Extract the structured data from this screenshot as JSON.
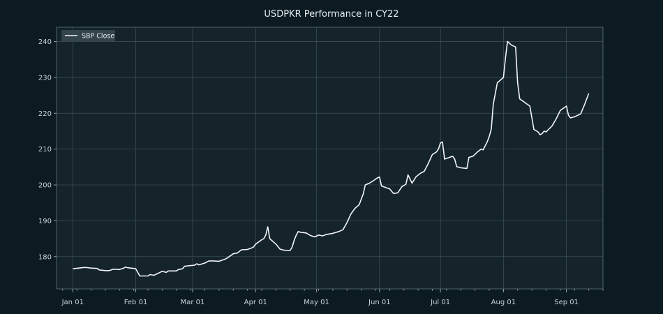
{
  "chart_data": {
    "type": "line",
    "title": "USDPKR Performance in CY22",
    "xlabel": "",
    "ylabel": "",
    "x_axis_type": "date",
    "xlim": [
      "2021-12-24",
      "2022-09-19"
    ],
    "ylim": [
      171,
      244
    ],
    "y_ticks": [
      180,
      190,
      200,
      210,
      220,
      230,
      240
    ],
    "x_ticks": [
      {
        "date": "2022-01-01",
        "label": "Jan 01"
      },
      {
        "date": "2022-02-01",
        "label": "Feb 01"
      },
      {
        "date": "2022-03-01",
        "label": "Mar 01"
      },
      {
        "date": "2022-04-01",
        "label": "Apr 01"
      },
      {
        "date": "2022-05-01",
        "label": "May 01"
      },
      {
        "date": "2022-06-01",
        "label": "Jun 01"
      },
      {
        "date": "2022-07-01",
        "label": "Jul 01"
      },
      {
        "date": "2022-08-01",
        "label": "Aug 01"
      },
      {
        "date": "2022-09-01",
        "label": "Sep 01"
      }
    ],
    "grid": true,
    "legend_position": "top-left",
    "series": [
      {
        "name": "SBP Close",
        "color": "#f2f5f7",
        "points": [
          [
            "2022-01-01",
            176.6
          ],
          [
            "2022-01-04",
            176.8
          ],
          [
            "2022-01-07",
            177.0
          ],
          [
            "2022-01-10",
            176.8
          ],
          [
            "2022-01-13",
            176.7
          ],
          [
            "2022-01-14",
            176.3
          ],
          [
            "2022-01-17",
            176.1
          ],
          [
            "2022-01-19",
            176.1
          ],
          [
            "2022-01-21",
            176.5
          ],
          [
            "2022-01-24",
            176.4
          ],
          [
            "2022-01-26",
            176.8
          ],
          [
            "2022-01-27",
            177.1
          ],
          [
            "2022-01-28",
            176.9
          ],
          [
            "2022-01-31",
            176.7
          ],
          [
            "2022-02-01",
            176.6
          ],
          [
            "2022-02-03",
            174.6
          ],
          [
            "2022-02-07",
            174.6
          ],
          [
            "2022-02-08",
            175.0
          ],
          [
            "2022-02-10",
            174.8
          ],
          [
            "2022-02-14",
            175.9
          ],
          [
            "2022-02-16",
            175.6
          ],
          [
            "2022-02-17",
            176.0
          ],
          [
            "2022-02-21",
            176.0
          ],
          [
            "2022-02-22",
            176.4
          ],
          [
            "2022-02-24",
            176.6
          ],
          [
            "2022-02-25",
            177.3
          ],
          [
            "2022-02-28",
            177.5
          ],
          [
            "2022-03-02",
            177.6
          ],
          [
            "2022-03-03",
            178.0
          ],
          [
            "2022-03-04",
            177.7
          ],
          [
            "2022-03-07",
            178.2
          ],
          [
            "2022-03-09",
            178.8
          ],
          [
            "2022-03-11",
            178.8
          ],
          [
            "2022-03-14",
            178.7
          ],
          [
            "2022-03-17",
            179.3
          ],
          [
            "2022-03-18",
            179.6
          ],
          [
            "2022-03-21",
            180.8
          ],
          [
            "2022-03-23",
            181.0
          ],
          [
            "2022-03-25",
            181.9
          ],
          [
            "2022-03-28",
            182.0
          ],
          [
            "2022-03-30",
            182.4
          ],
          [
            "2022-03-31",
            182.7
          ],
          [
            "2022-04-01",
            183.5
          ],
          [
            "2022-04-04",
            184.7
          ],
          [
            "2022-04-05",
            185.0
          ],
          [
            "2022-04-06",
            186.0
          ],
          [
            "2022-04-07",
            188.3
          ],
          [
            "2022-04-08",
            185.0
          ],
          [
            "2022-04-11",
            183.5
          ],
          [
            "2022-04-13",
            182.1
          ],
          [
            "2022-04-15",
            181.8
          ],
          [
            "2022-04-18",
            181.7
          ],
          [
            "2022-04-19",
            182.7
          ],
          [
            "2022-04-20",
            184.6
          ],
          [
            "2022-04-21",
            186.0
          ],
          [
            "2022-04-22",
            187.0
          ],
          [
            "2022-04-23",
            186.8
          ],
          [
            "2022-04-26",
            186.6
          ],
          [
            "2022-04-28",
            185.9
          ],
          [
            "2022-04-30",
            185.5
          ],
          [
            "2022-05-02",
            186.0
          ],
          [
            "2022-05-04",
            185.8
          ],
          [
            "2022-05-06",
            186.2
          ],
          [
            "2022-05-09",
            186.5
          ],
          [
            "2022-05-12",
            187.0
          ],
          [
            "2022-05-14",
            187.5
          ],
          [
            "2022-05-16",
            189.5
          ],
          [
            "2022-05-18",
            192.0
          ],
          [
            "2022-05-20",
            193.5
          ],
          [
            "2022-05-22",
            194.5
          ],
          [
            "2022-05-24",
            197.5
          ],
          [
            "2022-05-25",
            200.0
          ],
          [
            "2022-05-27",
            200.5
          ],
          [
            "2022-05-29",
            201.2
          ],
          [
            "2022-05-31",
            202.0
          ],
          [
            "2022-06-01",
            202.2
          ],
          [
            "2022-06-02",
            199.7
          ],
          [
            "2022-06-04",
            199.3
          ],
          [
            "2022-06-06",
            198.9
          ],
          [
            "2022-06-07",
            198.2
          ],
          [
            "2022-06-08",
            197.6
          ],
          [
            "2022-06-10",
            197.8
          ],
          [
            "2022-06-12",
            199.5
          ],
          [
            "2022-06-14",
            200.2
          ],
          [
            "2022-06-15",
            202.8
          ],
          [
            "2022-06-17",
            200.5
          ],
          [
            "2022-06-19",
            202.3
          ],
          [
            "2022-06-21",
            203.2
          ],
          [
            "2022-06-23",
            203.8
          ],
          [
            "2022-06-25",
            206.0
          ],
          [
            "2022-06-27",
            208.5
          ],
          [
            "2022-06-29",
            209.2
          ],
          [
            "2022-06-30",
            210.0
          ],
          [
            "2022-07-01",
            211.7
          ],
          [
            "2022-07-02",
            212.0
          ],
          [
            "2022-07-03",
            207.2
          ],
          [
            "2022-07-05",
            207.6
          ],
          [
            "2022-07-07",
            208.0
          ],
          [
            "2022-07-08",
            207.2
          ],
          [
            "2022-07-09",
            205.1
          ],
          [
            "2022-07-11",
            204.8
          ],
          [
            "2022-07-14",
            204.6
          ],
          [
            "2022-07-15",
            207.7
          ],
          [
            "2022-07-17",
            208.0
          ],
          [
            "2022-07-19",
            209.1
          ],
          [
            "2022-07-21",
            210.0
          ],
          [
            "2022-07-22",
            209.8
          ],
          [
            "2022-07-24",
            212.0
          ],
          [
            "2022-07-25",
            213.5
          ],
          [
            "2022-07-26",
            215.5
          ],
          [
            "2022-07-27",
            222.5
          ],
          [
            "2022-07-28",
            225.5
          ],
          [
            "2022-07-29",
            228.5
          ],
          [
            "2022-07-31",
            229.5
          ],
          [
            "2022-08-01",
            230.0
          ],
          [
            "2022-08-02",
            235.5
          ],
          [
            "2022-08-03",
            240.0
          ],
          [
            "2022-08-04",
            239.5
          ],
          [
            "2022-08-05",
            239.0
          ],
          [
            "2022-08-07",
            238.5
          ],
          [
            "2022-08-08",
            228.5
          ],
          [
            "2022-08-09",
            224.0
          ],
          [
            "2022-08-12",
            222.8
          ],
          [
            "2022-08-14",
            222.0
          ],
          [
            "2022-08-16",
            215.5
          ],
          [
            "2022-08-18",
            214.8
          ],
          [
            "2022-08-19",
            214.0
          ],
          [
            "2022-08-20",
            214.3
          ],
          [
            "2022-08-21",
            215.0
          ],
          [
            "2022-08-22",
            214.8
          ],
          [
            "2022-08-25",
            216.5
          ],
          [
            "2022-08-27",
            218.5
          ],
          [
            "2022-08-29",
            220.8
          ],
          [
            "2022-08-31",
            221.6
          ],
          [
            "2022-09-01",
            222.0
          ],
          [
            "2022-09-02",
            219.5
          ],
          [
            "2022-09-03",
            218.7
          ],
          [
            "2022-09-05",
            219.0
          ],
          [
            "2022-09-08",
            219.8
          ],
          [
            "2022-09-10",
            222.5
          ],
          [
            "2022-09-12",
            225.5
          ]
        ]
      }
    ]
  },
  "colors": {
    "background": "#0c1a22",
    "plot_background": "#15232b",
    "grid": "#3b4d56",
    "text": "#c9d3d8"
  }
}
